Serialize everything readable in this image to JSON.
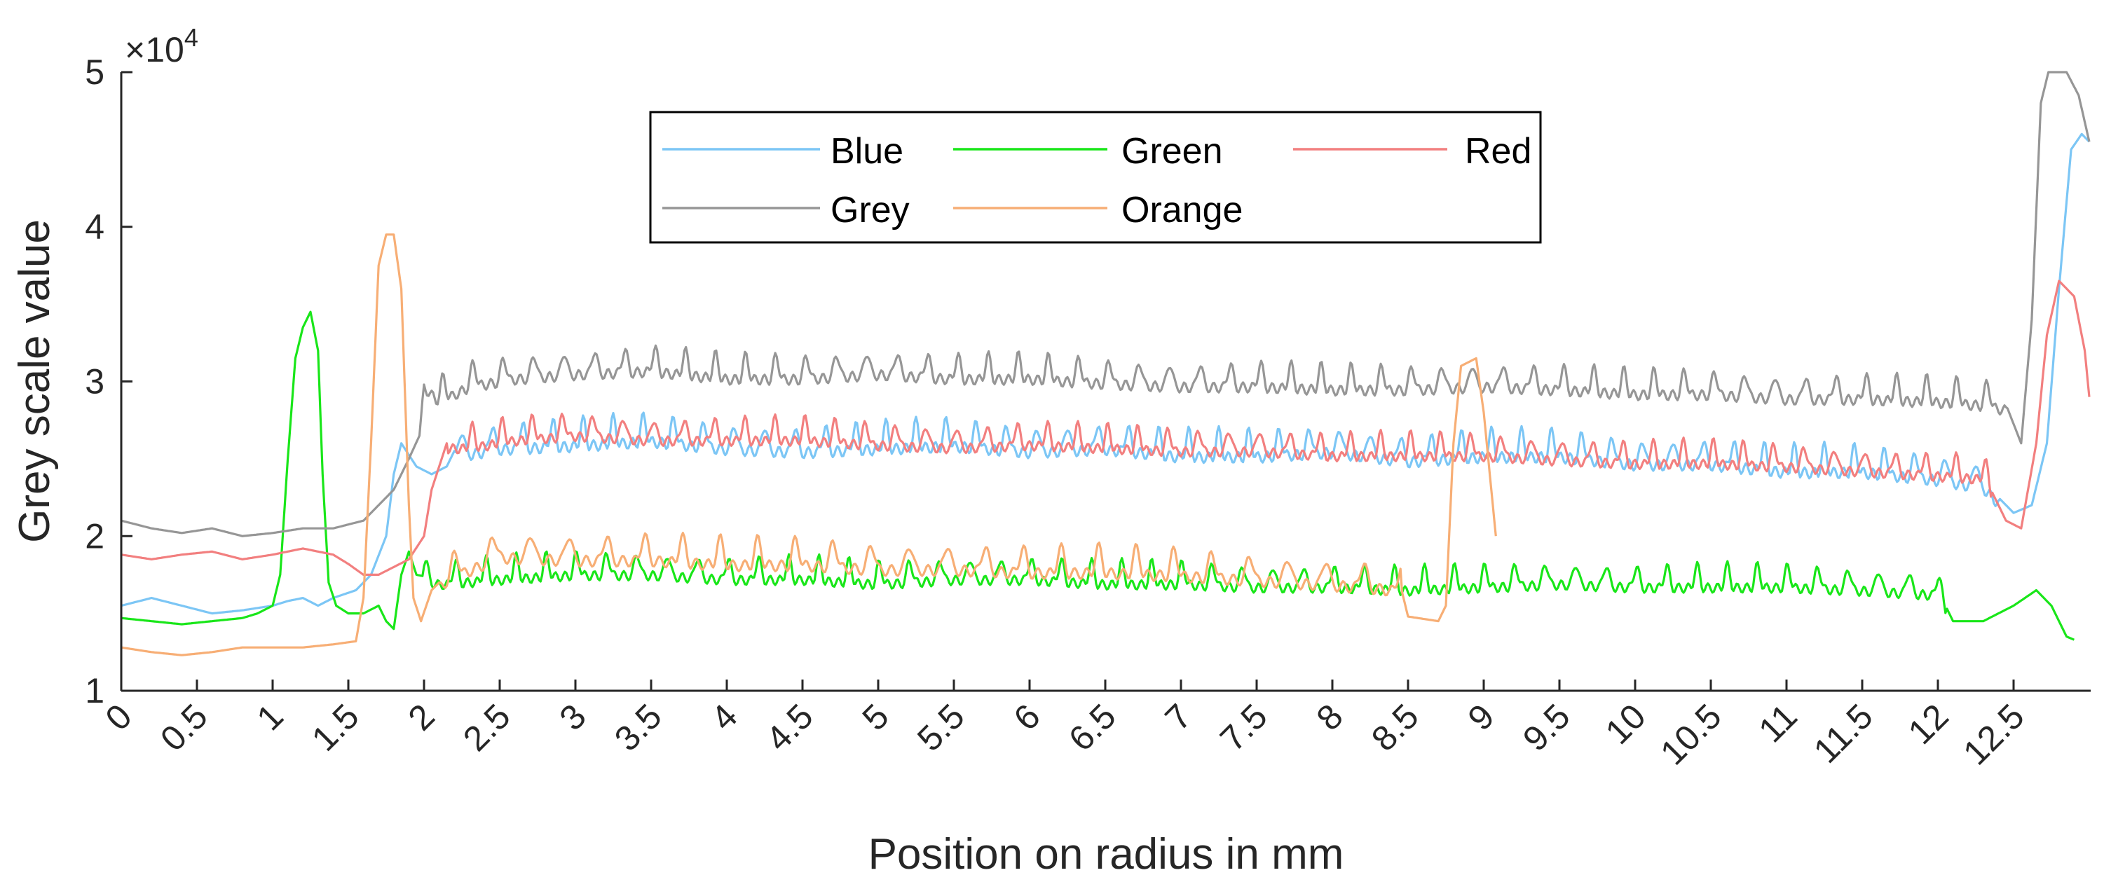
{
  "chart_data": {
    "type": "line",
    "title": "",
    "xlabel": "Position on radius in mm",
    "ylabel": "Grey scale value",
    "y_multiplier_label": "×10",
    "y_multiplier_exponent": "4",
    "xlim": [
      0,
      13
    ],
    "ylim": [
      1,
      5
    ],
    "x_ticks": [
      "0",
      "0.5",
      "1",
      "1.5",
      "2",
      "2.5",
      "3",
      "3.5",
      "4",
      "4.5",
      "5",
      "5.5",
      "6",
      "6.5",
      "7",
      "7.5",
      "8",
      "8.5",
      "9",
      "9.5",
      "10",
      "10.5",
      "11",
      "11.5",
      "12",
      "12.5"
    ],
    "y_ticks": [
      "1",
      "2",
      "3",
      "4",
      "5"
    ],
    "grid": false,
    "legend_position": "top-center",
    "series": [
      {
        "name": "Blue",
        "color": "#7cc6f5",
        "points": [
          [
            0,
            1.55
          ],
          [
            0.2,
            1.6
          ],
          [
            0.4,
            1.55
          ],
          [
            0.6,
            1.5
          ],
          [
            0.8,
            1.52
          ],
          [
            1.0,
            1.55
          ],
          [
            1.1,
            1.58
          ],
          [
            1.2,
            1.6
          ],
          [
            1.3,
            1.55
          ],
          [
            1.4,
            1.6
          ],
          [
            1.55,
            1.65
          ],
          [
            1.65,
            1.75
          ],
          [
            1.75,
            2.0
          ],
          [
            1.8,
            2.4
          ],
          [
            1.85,
            2.6
          ],
          [
            1.95,
            2.45
          ],
          [
            2.05,
            2.4
          ],
          [
            2.15,
            2.45
          ],
          [
            2.2,
            2.55
          ],
          [
            2.5,
            2.6
          ],
          [
            3.0,
            2.62
          ],
          [
            3.5,
            2.65
          ],
          [
            4.0,
            2.6
          ],
          [
            4.5,
            2.58
          ],
          [
            5.0,
            2.6
          ],
          [
            5.5,
            2.62
          ],
          [
            6.0,
            2.58
          ],
          [
            6.5,
            2.6
          ],
          [
            7.0,
            2.55
          ],
          [
            7.5,
            2.55
          ],
          [
            8.0,
            2.58
          ],
          [
            8.5,
            2.52
          ],
          [
            9.0,
            2.55
          ],
          [
            9.5,
            2.55
          ],
          [
            10.0,
            2.5
          ],
          [
            10.5,
            2.5
          ],
          [
            11.0,
            2.45
          ],
          [
            11.5,
            2.45
          ],
          [
            12.0,
            2.4
          ],
          [
            12.3,
            2.35
          ],
          [
            12.5,
            2.15
          ],
          [
            12.62,
            2.2
          ],
          [
            12.72,
            2.6
          ],
          [
            12.8,
            3.6
          ],
          [
            12.88,
            4.5
          ],
          [
            12.95,
            4.6
          ],
          [
            13.0,
            4.55
          ]
        ],
        "oscillation": {
          "x_from": 2.2,
          "x_to": 12.4,
          "amplitude": 0.14,
          "period": 0.2
        }
      },
      {
        "name": "Green",
        "color": "#19e619",
        "points": [
          [
            0,
            1.47
          ],
          [
            0.2,
            1.45
          ],
          [
            0.4,
            1.43
          ],
          [
            0.6,
            1.45
          ],
          [
            0.8,
            1.47
          ],
          [
            0.9,
            1.5
          ],
          [
            1.0,
            1.55
          ],
          [
            1.05,
            1.75
          ],
          [
            1.1,
            2.5
          ],
          [
            1.15,
            3.15
          ],
          [
            1.2,
            3.35
          ],
          [
            1.25,
            3.45
          ],
          [
            1.3,
            3.2
          ],
          [
            1.33,
            2.4
          ],
          [
            1.37,
            1.7
          ],
          [
            1.42,
            1.55
          ],
          [
            1.5,
            1.5
          ],
          [
            1.6,
            1.5
          ],
          [
            1.7,
            1.55
          ],
          [
            1.75,
            1.45
          ],
          [
            1.8,
            1.4
          ],
          [
            1.85,
            1.75
          ],
          [
            1.9,
            1.9
          ],
          [
            1.95,
            1.75
          ],
          [
            2.1,
            1.72
          ],
          [
            2.5,
            1.75
          ],
          [
            3.0,
            1.78
          ],
          [
            3.5,
            1.78
          ],
          [
            4.0,
            1.75
          ],
          [
            4.5,
            1.75
          ],
          [
            5.0,
            1.72
          ],
          [
            5.5,
            1.75
          ],
          [
            6.0,
            1.75
          ],
          [
            6.5,
            1.72
          ],
          [
            7.0,
            1.72
          ],
          [
            7.5,
            1.7
          ],
          [
            8.0,
            1.7
          ],
          [
            8.5,
            1.68
          ],
          [
            9.0,
            1.7
          ],
          [
            9.5,
            1.72
          ],
          [
            10.0,
            1.7
          ],
          [
            10.5,
            1.7
          ],
          [
            11.0,
            1.7
          ],
          [
            11.5,
            1.68
          ],
          [
            12.0,
            1.65
          ],
          [
            12.1,
            1.45
          ],
          [
            12.3,
            1.45
          ],
          [
            12.5,
            1.55
          ],
          [
            12.65,
            1.65
          ],
          [
            12.75,
            1.55
          ],
          [
            12.85,
            1.35
          ],
          [
            12.9,
            1.33
          ]
        ],
        "oscillation": {
          "x_from": 2.0,
          "x_to": 12.05,
          "amplitude": 0.12,
          "period": 0.2
        }
      },
      {
        "name": "Red",
        "color": "#f27f7f",
        "points": [
          [
            0,
            1.88
          ],
          [
            0.2,
            1.85
          ],
          [
            0.4,
            1.88
          ],
          [
            0.6,
            1.9
          ],
          [
            0.8,
            1.85
          ],
          [
            1.0,
            1.88
          ],
          [
            1.2,
            1.92
          ],
          [
            1.4,
            1.88
          ],
          [
            1.5,
            1.82
          ],
          [
            1.6,
            1.75
          ],
          [
            1.7,
            1.75
          ],
          [
            1.8,
            1.8
          ],
          [
            1.9,
            1.85
          ],
          [
            2.0,
            2.0
          ],
          [
            2.05,
            2.3
          ],
          [
            2.15,
            2.6
          ],
          [
            2.3,
            2.6
          ],
          [
            2.6,
            2.65
          ],
          [
            3.0,
            2.68
          ],
          [
            3.5,
            2.65
          ],
          [
            4.0,
            2.65
          ],
          [
            4.5,
            2.65
          ],
          [
            5.0,
            2.62
          ],
          [
            5.5,
            2.6
          ],
          [
            6.0,
            2.62
          ],
          [
            6.5,
            2.6
          ],
          [
            7.0,
            2.58
          ],
          [
            7.5,
            2.58
          ],
          [
            8.0,
            2.55
          ],
          [
            8.5,
            2.55
          ],
          [
            9.0,
            2.55
          ],
          [
            9.5,
            2.52
          ],
          [
            10.0,
            2.5
          ],
          [
            10.5,
            2.5
          ],
          [
            11.0,
            2.48
          ],
          [
            11.5,
            2.45
          ],
          [
            12.0,
            2.42
          ],
          [
            12.3,
            2.4
          ],
          [
            12.45,
            2.1
          ],
          [
            12.55,
            2.05
          ],
          [
            12.65,
            2.6
          ],
          [
            12.72,
            3.3
          ],
          [
            12.8,
            3.65
          ],
          [
            12.9,
            3.55
          ],
          [
            12.97,
            3.2
          ],
          [
            13.0,
            2.9
          ]
        ],
        "oscillation": {
          "x_from": 2.15,
          "x_to": 12.35,
          "amplitude": 0.12,
          "period": 0.2
        }
      },
      {
        "name": "Grey",
        "color": "#969696",
        "points": [
          [
            0,
            2.1
          ],
          [
            0.2,
            2.05
          ],
          [
            0.4,
            2.02
          ],
          [
            0.6,
            2.05
          ],
          [
            0.8,
            2.0
          ],
          [
            1.0,
            2.02
          ],
          [
            1.2,
            2.05
          ],
          [
            1.4,
            2.05
          ],
          [
            1.6,
            2.1
          ],
          [
            1.7,
            2.2
          ],
          [
            1.8,
            2.3
          ],
          [
            1.9,
            2.5
          ],
          [
            1.97,
            2.65
          ],
          [
            2.0,
            3.0
          ],
          [
            2.1,
            2.9
          ],
          [
            2.3,
            3.0
          ],
          [
            2.6,
            3.05
          ],
          [
            3.0,
            3.08
          ],
          [
            3.5,
            3.1
          ],
          [
            4.0,
            3.05
          ],
          [
            4.5,
            3.05
          ],
          [
            5.0,
            3.08
          ],
          [
            5.5,
            3.05
          ],
          [
            6.0,
            3.05
          ],
          [
            6.5,
            3.02
          ],
          [
            7.0,
            3.0
          ],
          [
            7.5,
            3.0
          ],
          [
            8.0,
            2.98
          ],
          [
            8.5,
            2.98
          ],
          [
            9.0,
            3.0
          ],
          [
            9.5,
            2.98
          ],
          [
            10.0,
            2.95
          ],
          [
            10.5,
            2.95
          ],
          [
            11.0,
            2.92
          ],
          [
            11.5,
            2.92
          ],
          [
            12.0,
            2.9
          ],
          [
            12.3,
            2.88
          ],
          [
            12.45,
            2.85
          ],
          [
            12.55,
            2.6
          ],
          [
            12.62,
            3.4
          ],
          [
            12.68,
            4.8
          ],
          [
            12.73,
            5.0
          ],
          [
            12.85,
            5.0
          ],
          [
            12.93,
            4.85
          ],
          [
            13.0,
            4.55
          ]
        ],
        "oscillation": {
          "x_from": 2.0,
          "x_to": 12.45,
          "amplitude": 0.13,
          "period": 0.2
        }
      },
      {
        "name": "Orange",
        "color": "#f7ae75",
        "points": [
          [
            0,
            1.28
          ],
          [
            0.2,
            1.25
          ],
          [
            0.4,
            1.23
          ],
          [
            0.6,
            1.25
          ],
          [
            0.8,
            1.28
          ],
          [
            1.0,
            1.28
          ],
          [
            1.2,
            1.28
          ],
          [
            1.4,
            1.3
          ],
          [
            1.55,
            1.32
          ],
          [
            1.6,
            1.6
          ],
          [
            1.65,
            2.6
          ],
          [
            1.7,
            3.75
          ],
          [
            1.75,
            3.95
          ],
          [
            1.8,
            3.95
          ],
          [
            1.85,
            3.6
          ],
          [
            1.9,
            2.2
          ],
          [
            1.93,
            1.6
          ],
          [
            1.98,
            1.45
          ],
          [
            2.05,
            1.65
          ],
          [
            2.15,
            1.75
          ],
          [
            2.5,
            1.9
          ],
          [
            3.0,
            1.88
          ],
          [
            3.5,
            1.88
          ],
          [
            4.0,
            1.85
          ],
          [
            4.5,
            1.85
          ],
          [
            5.0,
            1.82
          ],
          [
            5.5,
            1.82
          ],
          [
            6.0,
            1.8
          ],
          [
            6.5,
            1.8
          ],
          [
            7.0,
            1.78
          ],
          [
            7.5,
            1.75
          ],
          [
            8.0,
            1.72
          ],
          [
            8.3,
            1.7
          ],
          [
            8.45,
            1.68
          ],
          [
            8.5,
            1.48
          ],
          [
            8.7,
            1.45
          ],
          [
            8.75,
            1.55
          ],
          [
            8.8,
            2.6
          ],
          [
            8.85,
            3.1
          ],
          [
            8.95,
            3.15
          ],
          [
            9.0,
            2.8
          ],
          [
            9.05,
            2.3
          ],
          [
            9.08,
            2.0
          ]
        ],
        "oscillation": {
          "x_from": 2.1,
          "x_to": 8.45,
          "amplitude": 0.14,
          "period": 0.25
        }
      }
    ]
  }
}
